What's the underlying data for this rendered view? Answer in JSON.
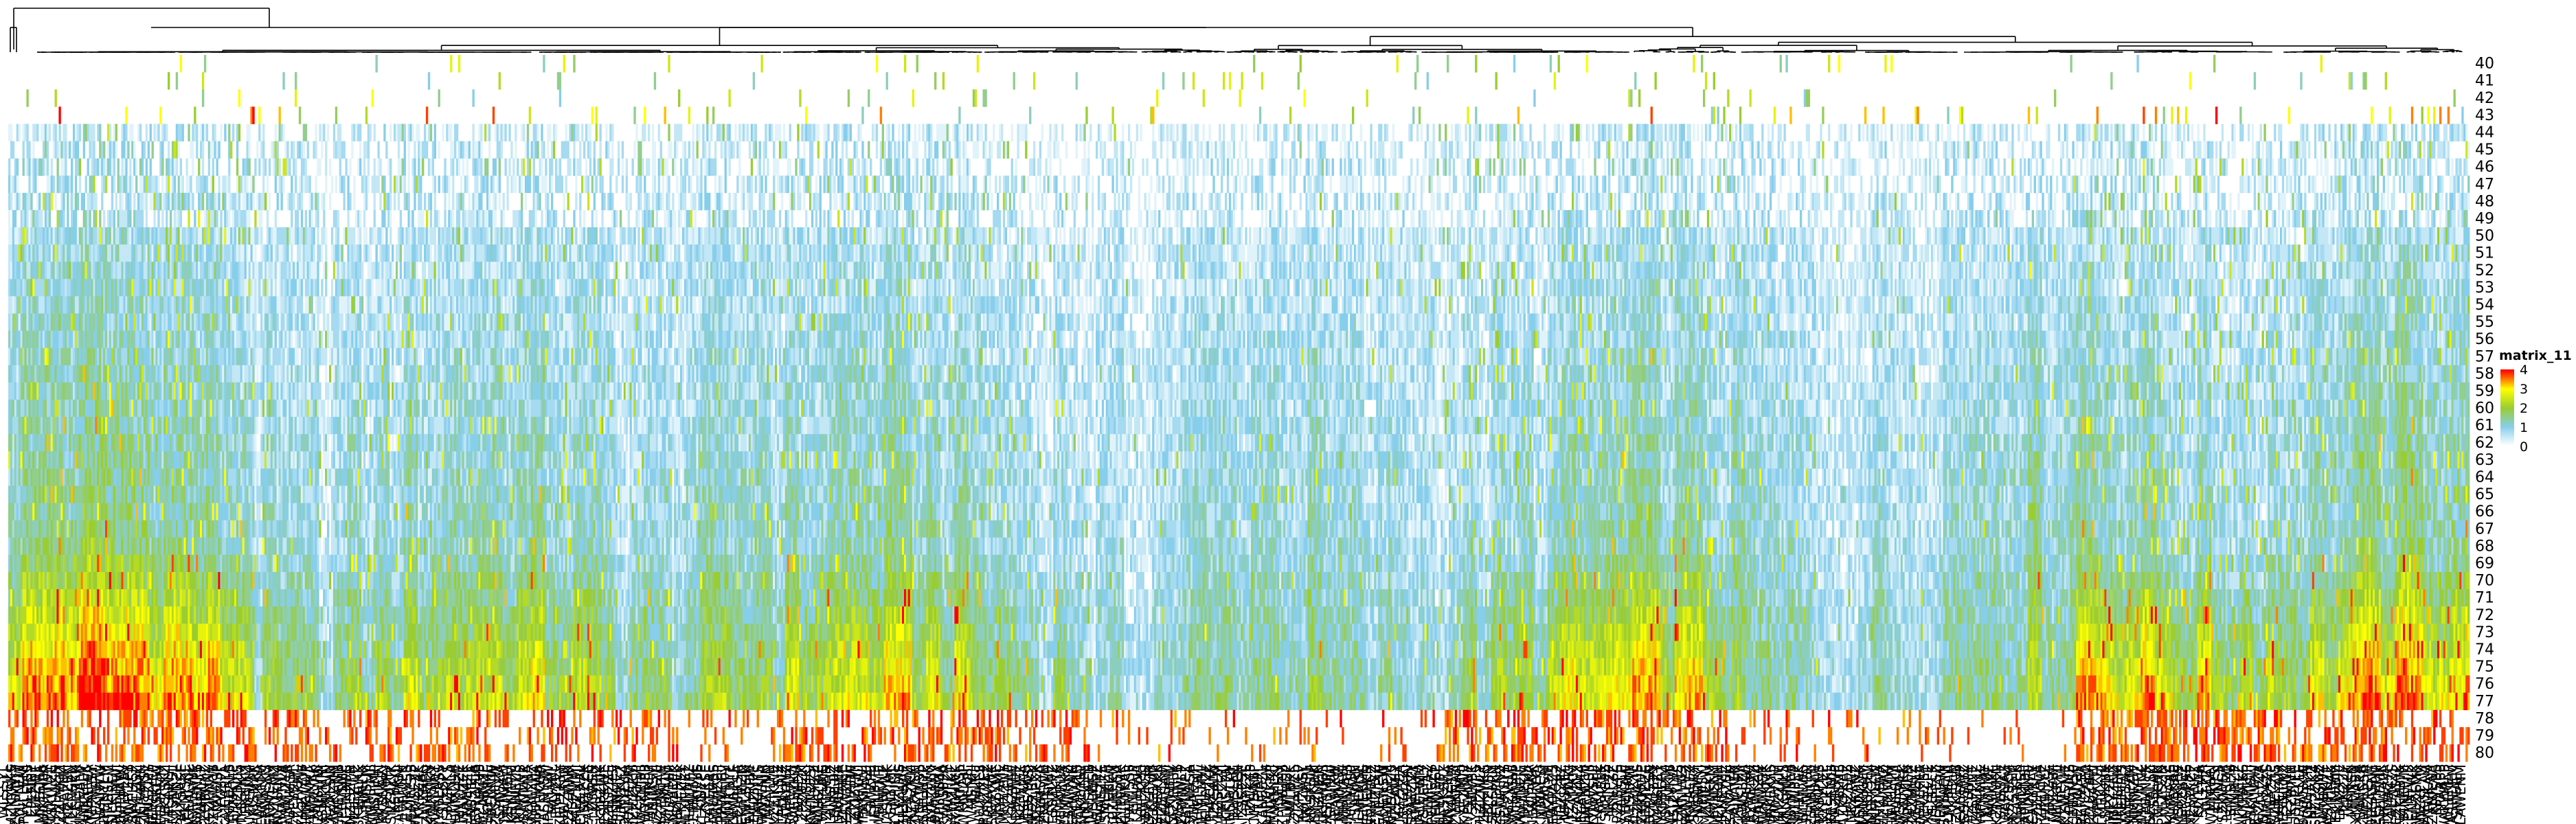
{
  "chart_data": {
    "type": "heatmap",
    "title": "",
    "xlabel": "",
    "ylabel": "",
    "rows": [
      "40",
      "41",
      "42",
      "43",
      "44",
      "45",
      "46",
      "47",
      "48",
      "49",
      "50",
      "51",
      "52",
      "53",
      "54",
      "55",
      "56",
      "57",
      "58",
      "59",
      "60",
      "61",
      "62",
      "63",
      "64",
      "65",
      "66",
      "67",
      "68",
      "69",
      "70",
      "71",
      "72",
      "73",
      "74",
      "75",
      "76",
      "77",
      "78",
      "79",
      "80"
    ],
    "column_label_glyphs": [
      "S",
      "M",
      "W",
      "J",
      "N",
      "Y",
      "P",
      "Z",
      "A",
      "K",
      "L",
      "E"
    ],
    "column_count": 1220,
    "dendrogram": "top",
    "legend": {
      "title": "matrix_11",
      "ticks": [
        "4",
        "3",
        "2",
        "1",
        "0"
      ],
      "colors": [
        "#ffffff",
        "#87ceeb",
        "#9acd32",
        "#ffff00",
        "#ff0000"
      ],
      "placement": "right"
    },
    "value_range": [
      0,
      4
    ],
    "note_values": "values per cell estimated; heatmap rendered as dense field"
  }
}
